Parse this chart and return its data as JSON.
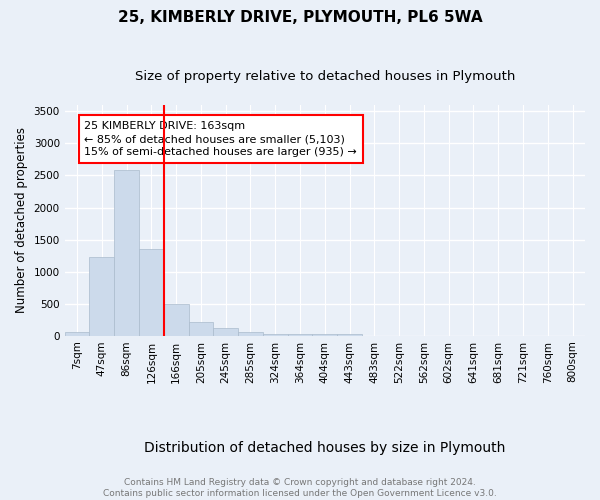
{
  "title": "25, KIMBERLY DRIVE, PLYMOUTH, PL6 5WA",
  "subtitle": "Size of property relative to detached houses in Plymouth",
  "xlabel": "Distribution of detached houses by size in Plymouth",
  "ylabel": "Number of detached properties",
  "footer_line1": "Contains HM Land Registry data © Crown copyright and database right 2024.",
  "footer_line2": "Contains public sector information licensed under the Open Government Licence v3.0.",
  "annotation_line1": "25 KIMBERLY DRIVE: 163sqm",
  "annotation_line2": "← 85% of detached houses are smaller (5,103)",
  "annotation_line3": "15% of semi-detached houses are larger (935) →",
  "bar_color": "#ccdaeb",
  "bar_edge_color": "#aabbcc",
  "marker_color": "red",
  "marker_bin": 4,
  "categories": [
    "7sqm",
    "47sqm",
    "86sqm",
    "126sqm",
    "166sqm",
    "205sqm",
    "245sqm",
    "285sqm",
    "324sqm",
    "364sqm",
    "404sqm",
    "443sqm",
    "483sqm",
    "522sqm",
    "562sqm",
    "602sqm",
    "641sqm",
    "681sqm",
    "721sqm",
    "760sqm",
    "800sqm"
  ],
  "values": [
    50,
    1230,
    2580,
    1350,
    490,
    215,
    120,
    50,
    30,
    20,
    20,
    30,
    0,
    0,
    0,
    0,
    0,
    0,
    0,
    0,
    0
  ],
  "ylim": [
    0,
    3600
  ],
  "yticks": [
    0,
    500,
    1000,
    1500,
    2000,
    2500,
    3000,
    3500
  ],
  "background_color": "#eaf0f8",
  "plot_bg_color": "#eaf0f8",
  "title_fontsize": 11,
  "subtitle_fontsize": 9.5,
  "xlabel_fontsize": 10,
  "ylabel_fontsize": 8.5,
  "tick_fontsize": 7.5,
  "annotation_fontsize": 8,
  "footer_fontsize": 6.5
}
